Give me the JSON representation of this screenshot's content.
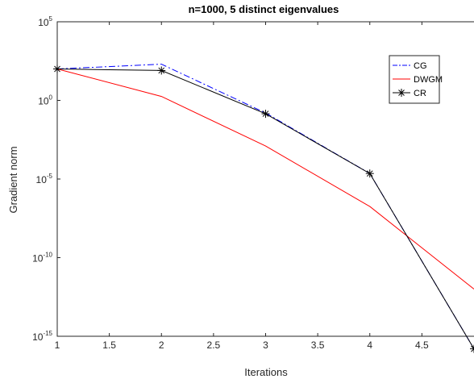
{
  "chart_data": {
    "type": "line",
    "title": "n=1000, 5 distinct eigenvalues",
    "xlabel": "Iterations",
    "ylabel": "Gradient norm",
    "xlim": [
      1,
      5
    ],
    "ylim_exp": [
      -15,
      5
    ],
    "yscale": "log",
    "xticks": [
      "1",
      "1.5",
      "2",
      "2.5",
      "3",
      "3.5",
      "4",
      "4.5"
    ],
    "ytick_base": "10",
    "ytick_exponents": [
      "5",
      "0",
      "-5",
      "-10",
      "-15"
    ],
    "grid": false,
    "legend_position": "top-right",
    "series": [
      {
        "name": "CG",
        "color": "#0000ff",
        "style": "dashdot",
        "marker": "none",
        "x": [
          1,
          2,
          3,
          4,
          5
        ],
        "log10_y": [
          2.0,
          2.3,
          -0.8,
          -4.65,
          -15.8
        ]
      },
      {
        "name": "DWGM",
        "color": "#ff0000",
        "style": "solid",
        "marker": "none",
        "x": [
          1,
          2,
          3,
          4,
          5
        ],
        "log10_y": [
          2.0,
          0.25,
          -2.9,
          -6.75,
          -12.0
        ]
      },
      {
        "name": "CR",
        "color": "#000000",
        "style": "solid",
        "marker": "asterisk",
        "x": [
          1,
          2,
          3,
          4,
          5
        ],
        "log10_y": [
          2.0,
          1.9,
          -0.85,
          -4.65,
          -15.8
        ]
      }
    ]
  }
}
